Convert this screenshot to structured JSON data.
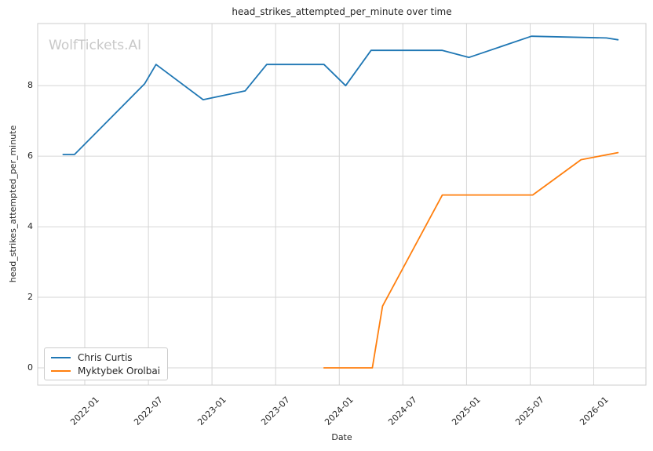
{
  "figure": {
    "watermark": "WolfTickets.AI",
    "colors": {
      "series_blue": "#1f77b4",
      "series_orange": "#ff7f0e",
      "grid": "#d6d6d6",
      "spine": "#cccccc",
      "text": "#262626",
      "watermark": "#c8c8c8",
      "background": "#ffffff"
    }
  },
  "chart_data": {
    "type": "line",
    "title": "head_strikes_attempted_per_minute over time",
    "xlabel": "Date",
    "ylabel": "head_strikes_attempted_per_minute",
    "grid": true,
    "legend_position": "lower-left",
    "xlim": [
      2021.63,
      2026.41
    ],
    "ylim": [
      -0.49,
      9.76
    ],
    "x_ticks": [
      {
        "x": 2022.0,
        "label": "2022-01"
      },
      {
        "x": 2022.5,
        "label": "2022-07"
      },
      {
        "x": 2023.0,
        "label": "2023-01"
      },
      {
        "x": 2023.5,
        "label": "2023-07"
      },
      {
        "x": 2024.0,
        "label": "2024-01"
      },
      {
        "x": 2024.5,
        "label": "2024-07"
      },
      {
        "x": 2025.0,
        "label": "2025-01"
      },
      {
        "x": 2025.5,
        "label": "2025-07"
      },
      {
        "x": 2026.0,
        "label": "2026-01"
      }
    ],
    "y_ticks": [
      0,
      2,
      4,
      6,
      8
    ],
    "series": [
      {
        "name": "Chris Curtis",
        "color": "#1f77b4",
        "points": [
          {
            "date": "2021-11",
            "x": 2021.83,
            "y": 6.05
          },
          {
            "date": "2021-12",
            "x": 2021.92,
            "y": 6.05
          },
          {
            "date": "2022-06",
            "x": 2022.47,
            "y": 8.05
          },
          {
            "date": "2022-08",
            "x": 2022.56,
            "y": 8.6
          },
          {
            "date": "2022-12",
            "x": 2022.93,
            "y": 7.6
          },
          {
            "date": "2023-04",
            "x": 2023.26,
            "y": 7.85
          },
          {
            "date": "2023-06",
            "x": 2023.43,
            "y": 8.6
          },
          {
            "date": "2023-11",
            "x": 2023.88,
            "y": 8.6
          },
          {
            "date": "2024-01",
            "x": 2024.05,
            "y": 8.0
          },
          {
            "date": "2024-04",
            "x": 2024.25,
            "y": 9.0
          },
          {
            "date": "2024-10",
            "x": 2024.81,
            "y": 9.0
          },
          {
            "date": "2025-01",
            "x": 2025.02,
            "y": 8.8
          },
          {
            "date": "2025-07",
            "x": 2025.51,
            "y": 9.4
          },
          {
            "date": "2026-02",
            "x": 2026.1,
            "y": 9.35
          },
          {
            "date": "2026-03",
            "x": 2026.19,
            "y": 9.3
          }
        ]
      },
      {
        "name": "Myktybek Orolbai",
        "color": "#ff7f0e",
        "points": [
          {
            "date": "2023-11",
            "x": 2023.88,
            "y": 0.0
          },
          {
            "date": "2024-04",
            "x": 2024.26,
            "y": 0.0
          },
          {
            "date": "2024-05",
            "x": 2024.34,
            "y": 1.75
          },
          {
            "date": "2024-10",
            "x": 2024.81,
            "y": 4.9
          },
          {
            "date": "2025-07",
            "x": 2025.52,
            "y": 4.9
          },
          {
            "date": "2025-12",
            "x": 2025.9,
            "y": 5.9
          },
          {
            "date": "2026-03",
            "x": 2026.19,
            "y": 6.1
          }
        ]
      }
    ]
  }
}
